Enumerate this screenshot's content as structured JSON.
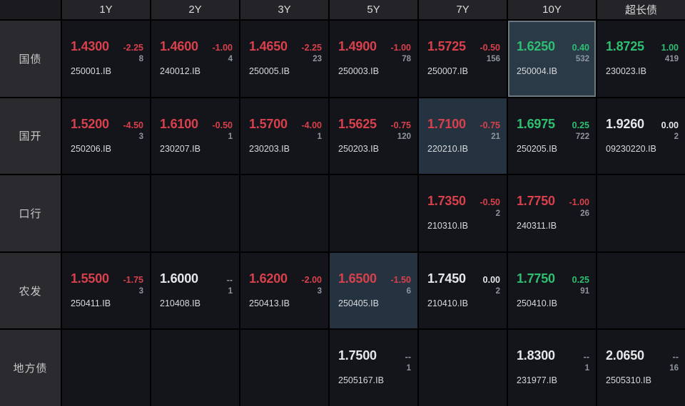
{
  "colors": {
    "up": "#2fbf72",
    "down": "#d8404c",
    "flat": "#e5e7e9",
    "muted": "#8f969d",
    "code": "#d7d9db",
    "header_bg": "#242428",
    "corner_bg": "#1b1b1f",
    "label_bg": "#2b2b2f",
    "cell_bg": "#13151a",
    "grid_line": "#000000",
    "highlight_bg": "#24333f",
    "selected_bg": "#2a3a47",
    "selected_border": "#6d7780"
  },
  "columns": [
    "1Y",
    "2Y",
    "3Y",
    "5Y",
    "7Y",
    "10Y",
    "超长债"
  ],
  "rows": [
    {
      "label": "国债",
      "cells": [
        {
          "yield": "1.4300",
          "change": "-2.25",
          "dir": "down",
          "count": "8",
          "code": "250001.IB"
        },
        {
          "yield": "1.4600",
          "change": "-1.00",
          "dir": "down",
          "count": "4",
          "code": "240012.IB"
        },
        {
          "yield": "1.4650",
          "change": "-2.25",
          "dir": "down",
          "count": "23",
          "code": "250005.IB"
        },
        {
          "yield": "1.4900",
          "change": "-1.00",
          "dir": "down",
          "count": "78",
          "code": "250003.IB"
        },
        {
          "yield": "1.5725",
          "change": "-0.50",
          "dir": "down",
          "count": "156",
          "code": "250007.IB"
        },
        {
          "yield": "1.6250",
          "change": "0.40",
          "dir": "up",
          "count": "532",
          "code": "250004.IB",
          "state": "selected"
        },
        {
          "yield": "1.8725",
          "change": "1.00",
          "dir": "up",
          "count": "419",
          "code": "230023.IB"
        }
      ]
    },
    {
      "label": "国开",
      "cells": [
        {
          "yield": "1.5200",
          "change": "-4.50",
          "dir": "down",
          "count": "3",
          "code": "250206.IB"
        },
        {
          "yield": "1.6100",
          "change": "-0.50",
          "dir": "down",
          "count": "1",
          "code": "230207.IB"
        },
        {
          "yield": "1.5700",
          "change": "-4.00",
          "dir": "down",
          "count": "1",
          "code": "230203.IB"
        },
        {
          "yield": "1.5625",
          "change": "-0.75",
          "dir": "down",
          "count": "120",
          "code": "250203.IB"
        },
        {
          "yield": "1.7100",
          "change": "-0.75",
          "dir": "down",
          "count": "21",
          "code": "220210.IB",
          "state": "highlighted"
        },
        {
          "yield": "1.6975",
          "change": "0.25",
          "dir": "up",
          "count": "722",
          "code": "250205.IB"
        },
        {
          "yield": "1.9260",
          "change": "0.00",
          "dir": "flat",
          "count": "2",
          "code": "09230220.IB"
        }
      ]
    },
    {
      "label": "口行",
      "cells": [
        null,
        null,
        null,
        null,
        {
          "yield": "1.7350",
          "change": "-0.50",
          "dir": "down",
          "count": "2",
          "code": "210310.IB"
        },
        {
          "yield": "1.7750",
          "change": "-1.00",
          "dir": "down",
          "count": "26",
          "code": "240311.IB"
        },
        null
      ]
    },
    {
      "label": "农发",
      "cells": [
        {
          "yield": "1.5500",
          "change": "-1.75",
          "dir": "down",
          "count": "3",
          "code": "250411.IB"
        },
        {
          "yield": "1.6000",
          "change": "--",
          "dir": "none",
          "count": "1",
          "code": "210408.IB"
        },
        {
          "yield": "1.6200",
          "change": "-2.00",
          "dir": "down",
          "count": "3",
          "code": "250413.IB"
        },
        {
          "yield": "1.6500",
          "change": "-1.50",
          "dir": "down",
          "count": "6",
          "code": "250405.IB",
          "state": "highlighted"
        },
        {
          "yield": "1.7450",
          "change": "0.00",
          "dir": "flat",
          "count": "2",
          "code": "210410.IB"
        },
        {
          "yield": "1.7750",
          "change": "0.25",
          "dir": "up",
          "count": "91",
          "code": "250410.IB"
        },
        null
      ]
    },
    {
      "label": "地方债",
      "cells": [
        null,
        null,
        null,
        {
          "yield": "1.7500",
          "change": "--",
          "dir": "none",
          "count": "1",
          "code": "2505167.IB"
        },
        null,
        {
          "yield": "1.8300",
          "change": "--",
          "dir": "none",
          "count": "1",
          "code": "231977.IB"
        },
        {
          "yield": "2.0650",
          "change": "--",
          "dir": "none",
          "count": "16",
          "code": "2505310.IB"
        }
      ]
    }
  ]
}
